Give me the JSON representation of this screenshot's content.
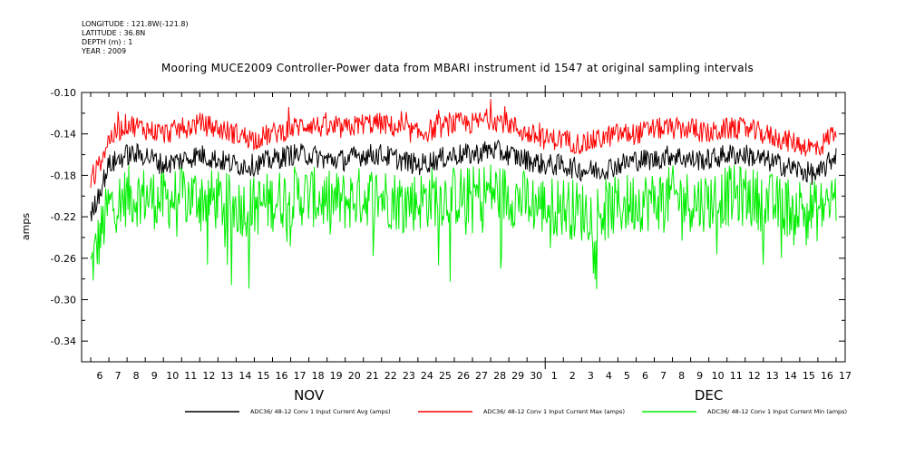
{
  "meta_lines": [
    "LONGITUDE : 121.8W(-121.8)",
    "LATITUDE : 36.8N",
    "DEPTH (m) : 1",
    "YEAR : 2009"
  ],
  "chart_data": {
    "type": "line",
    "title": "Mooring MUCE2009 Controller-Power data from MBARI instrument id 1547 at original sampling intervals",
    "ylabel": "amps",
    "xlabel": "",
    "ylim": [
      -0.36,
      -0.1
    ],
    "yticks": [
      -0.1,
      -0.14,
      -0.18,
      -0.22,
      -0.26,
      -0.3,
      -0.34
    ],
    "ytick_labels": [
      "-0.10",
      "-0.14",
      "-0.18",
      "-0.22",
      "-0.26",
      "-0.30",
      "-0.34"
    ],
    "xlim_days": [
      "2009-11-05T12:00",
      "2009-12-17T12:00"
    ],
    "xtick_labels": [
      "6",
      "7",
      "8",
      "9",
      "10",
      "11",
      "12",
      "13",
      "14",
      "15",
      "16",
      "17",
      "18",
      "19",
      "20",
      "21",
      "22",
      "23",
      "24",
      "25",
      "26",
      "27",
      "28",
      "29",
      "30",
      "1",
      "2",
      "3",
      "4",
      "5",
      "6",
      "7",
      "8",
      "9",
      "10",
      "11",
      "12",
      "13",
      "14",
      "15",
      "16",
      "17"
    ],
    "month_labels": [
      {
        "label": "NOV",
        "date": "2009-11-18"
      },
      {
        "label": "DEC",
        "date": "2009-12-10"
      }
    ],
    "legend_position": "bottom",
    "series": [
      {
        "name": "ADC36/ 48-12 Conv 1 Input Current Avg (amps)",
        "color": "#000000",
        "x": [
          "2009-11-06",
          "2009-11-07",
          "2009-11-08",
          "2009-11-09",
          "2009-11-10",
          "2009-11-11",
          "2009-11-12",
          "2009-11-13",
          "2009-11-14",
          "2009-11-15",
          "2009-11-16",
          "2009-11-17",
          "2009-11-18",
          "2009-11-19",
          "2009-11-20",
          "2009-11-21",
          "2009-11-22",
          "2009-11-23",
          "2009-11-24",
          "2009-11-25",
          "2009-11-26",
          "2009-11-27",
          "2009-11-28",
          "2009-11-29",
          "2009-11-30",
          "2009-12-01",
          "2009-12-02",
          "2009-12-03",
          "2009-12-04",
          "2009-12-05",
          "2009-12-06",
          "2009-12-07",
          "2009-12-08",
          "2009-12-09",
          "2009-12-10",
          "2009-12-11",
          "2009-12-12",
          "2009-12-13",
          "2009-12-14",
          "2009-12-15",
          "2009-12-16",
          "2009-12-17"
        ],
        "values": [
          -0.22,
          -0.17,
          -0.16,
          -0.16,
          -0.17,
          -0.165,
          -0.16,
          -0.165,
          -0.17,
          -0.17,
          -0.165,
          -0.16,
          -0.16,
          -0.165,
          -0.165,
          -0.16,
          -0.16,
          -0.165,
          -0.17,
          -0.165,
          -0.16,
          -0.16,
          -0.155,
          -0.16,
          -0.165,
          -0.17,
          -0.17,
          -0.175,
          -0.175,
          -0.17,
          -0.165,
          -0.165,
          -0.16,
          -0.165,
          -0.165,
          -0.16,
          -0.16,
          -0.165,
          -0.17,
          -0.175,
          -0.18,
          -0.16
        ]
      },
      {
        "name": "ADC36/ 48-12 Conv 1 Input Current Max (amps)",
        "color": "#ff0000",
        "x": [
          "2009-11-06",
          "2009-11-07",
          "2009-11-08",
          "2009-11-09",
          "2009-11-10",
          "2009-11-11",
          "2009-11-12",
          "2009-11-13",
          "2009-11-14",
          "2009-11-15",
          "2009-11-16",
          "2009-11-17",
          "2009-11-18",
          "2009-11-19",
          "2009-11-20",
          "2009-11-21",
          "2009-11-22",
          "2009-11-23",
          "2009-11-24",
          "2009-11-25",
          "2009-11-26",
          "2009-11-27",
          "2009-11-28",
          "2009-11-29",
          "2009-11-30",
          "2009-12-01",
          "2009-12-02",
          "2009-12-03",
          "2009-12-04",
          "2009-12-05",
          "2009-12-06",
          "2009-12-07",
          "2009-12-08",
          "2009-12-09",
          "2009-12-10",
          "2009-12-11",
          "2009-12-12",
          "2009-12-13",
          "2009-12-14",
          "2009-12-15",
          "2009-12-16",
          "2009-12-17"
        ],
        "values": [
          -0.19,
          -0.145,
          -0.13,
          -0.135,
          -0.14,
          -0.135,
          -0.13,
          -0.135,
          -0.14,
          -0.145,
          -0.14,
          -0.135,
          -0.13,
          -0.135,
          -0.135,
          -0.13,
          -0.13,
          -0.135,
          -0.14,
          -0.135,
          -0.13,
          -0.13,
          -0.125,
          -0.13,
          -0.14,
          -0.145,
          -0.145,
          -0.15,
          -0.145,
          -0.14,
          -0.14,
          -0.135,
          -0.135,
          -0.135,
          -0.14,
          -0.135,
          -0.135,
          -0.14,
          -0.145,
          -0.15,
          -0.155,
          -0.135
        ]
      },
      {
        "name": "ADC36/ 48-12 Conv 1 Input Current Min (amps)",
        "color": "#00ee00",
        "x": [
          "2009-11-06",
          "2009-11-07",
          "2009-11-08",
          "2009-11-09",
          "2009-11-10",
          "2009-11-11",
          "2009-11-12",
          "2009-11-13",
          "2009-11-14",
          "2009-11-15",
          "2009-11-16",
          "2009-11-17",
          "2009-11-18",
          "2009-11-19",
          "2009-11-20",
          "2009-11-21",
          "2009-11-22",
          "2009-11-23",
          "2009-11-24",
          "2009-11-25",
          "2009-11-26",
          "2009-11-27",
          "2009-11-28",
          "2009-11-29",
          "2009-11-30",
          "2009-12-01",
          "2009-12-02",
          "2009-12-03",
          "2009-12-04",
          "2009-12-05",
          "2009-12-06",
          "2009-12-07",
          "2009-12-08",
          "2009-12-09",
          "2009-12-10",
          "2009-12-11",
          "2009-12-12",
          "2009-12-13",
          "2009-12-14",
          "2009-12-15",
          "2009-12-16",
          "2009-12-17"
        ],
        "values": [
          -0.27,
          -0.21,
          -0.2,
          -0.2,
          -0.205,
          -0.2,
          -0.2,
          -0.205,
          -0.21,
          -0.21,
          -0.205,
          -0.2,
          -0.2,
          -0.205,
          -0.205,
          -0.2,
          -0.2,
          -0.205,
          -0.205,
          -0.2,
          -0.2,
          -0.2,
          -0.195,
          -0.2,
          -0.205,
          -0.21,
          -0.21,
          -0.215,
          -0.215,
          -0.21,
          -0.205,
          -0.205,
          -0.2,
          -0.205,
          -0.205,
          -0.2,
          -0.2,
          -0.205,
          -0.21,
          -0.21,
          -0.215,
          -0.2
        ]
      }
    ]
  }
}
